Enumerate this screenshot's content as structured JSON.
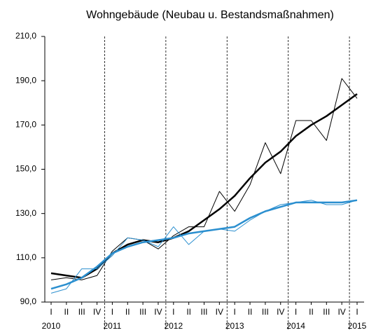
{
  "chart_data": {
    "type": "line",
    "title": "Wohngebäude (Neubau u. Bestandsmaßnahmen)",
    "categories": [
      "I",
      "II",
      "III",
      "IV",
      "I",
      "II",
      "III",
      "IV",
      "I",
      "II",
      "III",
      "IV",
      "I",
      "II",
      "III",
      "IV",
      "I",
      "II",
      "III",
      "IV",
      "I"
    ],
    "years": [
      "2010",
      "2011",
      "2012",
      "2013",
      "2014",
      "2015"
    ],
    "series": [
      {
        "color": "#000000",
        "line_width": 1,
        "values": [
          100,
          101,
          100,
          102,
          113,
          119,
          118,
          114,
          120,
          124,
          124,
          140,
          131,
          143,
          162,
          148,
          172,
          172,
          163,
          191,
          182
        ]
      },
      {
        "color": "#000000",
        "line_width": 2.5,
        "values": [
          103,
          102,
          101,
          105,
          112,
          116,
          118,
          117,
          119,
          122,
          127,
          132,
          138,
          146,
          153,
          158,
          165,
          170,
          174,
          179,
          184
        ]
      },
      {
        "color": "#2b8fcf",
        "line_width": 1,
        "values": [
          94,
          96,
          105,
          105,
          111,
          119,
          118,
          115,
          124,
          116,
          122,
          123,
          122,
          127,
          131,
          134,
          135,
          136,
          134,
          134,
          136
        ]
      },
      {
        "color": "#2b8fcf",
        "line_width": 2.5,
        "values": [
          96,
          98,
          101,
          106,
          112,
          115,
          117,
          118,
          119,
          121,
          122,
          123,
          124,
          128,
          131,
          133,
          135,
          135,
          135,
          135,
          136
        ]
      }
    ],
    "ylim": [
      90,
      210
    ],
    "yticks": [
      {
        "value": 90,
        "label": "90,0"
      },
      {
        "value": 110,
        "label": "110,0"
      },
      {
        "value": 130,
        "label": "130,0"
      },
      {
        "value": 150,
        "label": "150,0"
      },
      {
        "value": 170,
        "label": "170,0"
      },
      {
        "value": 190,
        "label": "190,0"
      },
      {
        "value": 210,
        "label": "210,0"
      }
    ],
    "year_dividers": true
  }
}
